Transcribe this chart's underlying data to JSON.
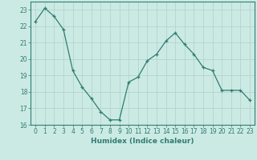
{
  "x": [
    0,
    1,
    2,
    3,
    4,
    5,
    6,
    7,
    8,
    9,
    10,
    11,
    12,
    13,
    14,
    15,
    16,
    17,
    18,
    19,
    20,
    21,
    22,
    23
  ],
  "y": [
    22.3,
    23.1,
    22.6,
    21.8,
    19.3,
    18.3,
    17.6,
    16.8,
    16.3,
    16.3,
    18.6,
    18.9,
    19.9,
    20.3,
    21.1,
    21.6,
    20.9,
    20.3,
    19.5,
    19.3,
    18.1,
    18.1,
    18.1,
    17.5
  ],
  "line_color": "#2e7d72",
  "marker": "+",
  "marker_size": 3.5,
  "bg_color": "#cceae4",
  "grid_color": "#b0d0ca",
  "tick_color": "#2e7d72",
  "xlabel": "Humidex (Indice chaleur)",
  "xlim": [
    -0.5,
    23.5
  ],
  "ylim": [
    16,
    23.5
  ],
  "yticks": [
    16,
    17,
    18,
    19,
    20,
    21,
    22,
    23
  ],
  "xticks": [
    0,
    1,
    2,
    3,
    4,
    5,
    6,
    7,
    8,
    9,
    10,
    11,
    12,
    13,
    14,
    15,
    16,
    17,
    18,
    19,
    20,
    21,
    22,
    23
  ],
  "label_fontsize": 6.5,
  "tick_fontsize": 5.5
}
